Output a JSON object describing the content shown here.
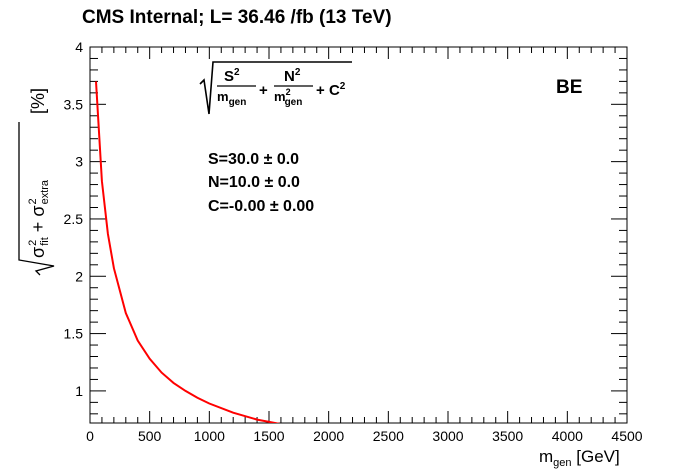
{
  "chart_data": {
    "type": "line",
    "title": "CMS Internal; L= 36.46 /fb (13 TeV)",
    "xlabel_main": "m",
    "xlabel_sub": "gen",
    "xlabel_unit": "[GeV]",
    "ylabel": {
      "sigma": "σ",
      "fit": "fit",
      "plus": "+",
      "extra": "extra",
      "sq": "2",
      "unit": "[%]"
    },
    "formula": {
      "S": "S",
      "N": "N",
      "C": "C",
      "mgen": "m",
      "gen": "gen",
      "sq": "2",
      "plus": "+"
    },
    "region": "BE",
    "params": [
      "S=30.0 ± 0.0",
      "N=10.0 ± 0.0",
      "C=-0.00 ± 0.00"
    ],
    "xlim": [
      0,
      4500
    ],
    "ylim": [
      0.72,
      4.0
    ],
    "xticks": [
      "0",
      "500",
      "1000",
      "1500",
      "2000",
      "2500",
      "3000",
      "3500",
      "4000",
      "4500"
    ],
    "yticks": [
      "1",
      "1.5",
      "2",
      "2.5",
      "3",
      "3.5",
      "4"
    ],
    "series": [
      {
        "color": "#ff0000",
        "x": [
          50,
          100,
          150,
          200,
          300,
          400,
          500,
          600,
          700,
          800,
          900,
          1000,
          1200,
          1400,
          1600,
          1800,
          1900
        ],
        "y": [
          3.7,
          2.83,
          2.37,
          2.07,
          1.68,
          1.44,
          1.28,
          1.16,
          1.07,
          1.0,
          0.94,
          0.89,
          0.81,
          0.75,
          0.71,
          0.68,
          0.67
        ]
      }
    ]
  }
}
